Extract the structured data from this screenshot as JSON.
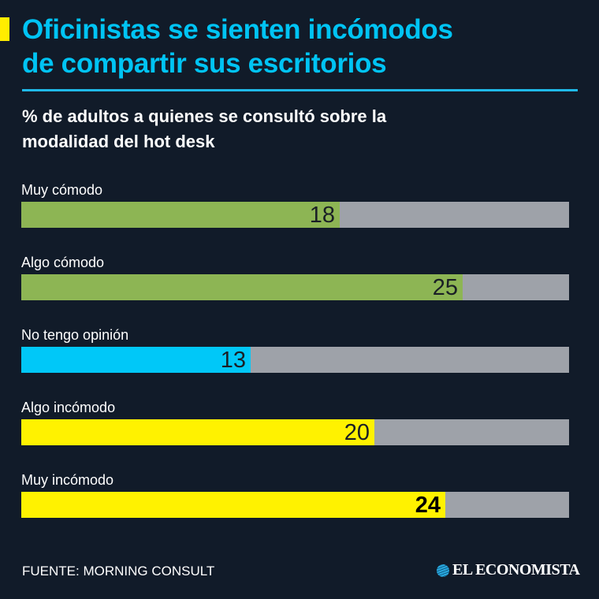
{
  "header": {
    "title_line1": "Oficinistas se sienten incómodos",
    "title_line2": "de compartir sus escritorios",
    "subtitle_line1": "% de adultos a quienes se consultó sobre la",
    "subtitle_line2": "modalidad del hot desk"
  },
  "chart_data": {
    "type": "bar",
    "orientation": "horizontal",
    "title": "Oficinistas se sienten incómodos de compartir sus escritorios",
    "subtitle": "% de adultos a quienes se consultó sobre la modalidad del hot desk",
    "scale_max": 31,
    "categories": [
      "Muy cómodo",
      "Algo cómodo",
      "No tengo opinión",
      "Algo incómodo",
      "Muy incómodo"
    ],
    "values": [
      18,
      25,
      13,
      20,
      24
    ],
    "labels": [
      "18",
      "25",
      "13",
      "20",
      "24"
    ],
    "colors": [
      "#8db554",
      "#8db554",
      "#00c8f8",
      "#fff200",
      "#fff200"
    ],
    "bold": [
      false,
      false,
      false,
      false,
      true
    ],
    "track_color": "#9ea2a9"
  },
  "footer": {
    "source": "FUENTE: MORNING CONSULT",
    "logo_text": "EL ECONOMISTA"
  }
}
